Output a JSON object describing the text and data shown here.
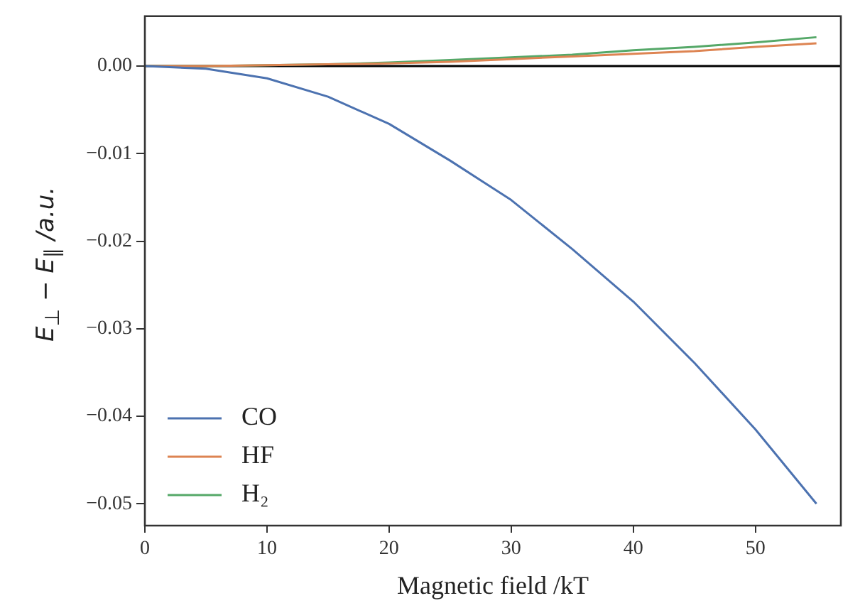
{
  "chart_data": {
    "type": "line",
    "xlabel": "Magnetic field /kT",
    "ylabel": "E$_{⊥}$ − E$_{∥}$ /a.u.",
    "x": [
      0,
      5,
      10,
      15,
      20,
      25,
      30,
      35,
      40,
      45,
      50,
      55
    ],
    "series": [
      {
        "name": "CO",
        "color": "#4c72b0",
        "values": [
          0,
          -0.0003,
          -0.0014,
          -0.0035,
          -0.0066,
          -0.0108,
          -0.0153,
          -0.0209,
          -0.0269,
          -0.0339,
          -0.0415,
          -0.05
        ]
      },
      {
        "name": "HF",
        "color": "#dd8452",
        "values": [
          0,
          0,
          0.0001,
          0.0002,
          0.0003,
          0.0005,
          0.0008,
          0.0011,
          0.0014,
          0.0017,
          0.0022,
          0.0026
        ]
      },
      {
        "name": "H₂",
        "color": "#55a868",
        "values": [
          0,
          0,
          0.0001,
          0.0002,
          0.0004,
          0.0007,
          0.001,
          0.0013,
          0.0018,
          0.0022,
          0.0027,
          0.0033
        ]
      }
    ],
    "xlim": [
      0,
      57
    ],
    "xticks": [
      0,
      10,
      20,
      30,
      40,
      50
    ],
    "ylim": [
      -0.0525,
      0.0057
    ],
    "yticks": [
      {
        "value": 0,
        "label": "0.00"
      },
      {
        "value": -0.01,
        "label": "−0.01"
      },
      {
        "value": -0.02,
        "label": "−0.02"
      },
      {
        "value": -0.03,
        "label": "−0.03"
      },
      {
        "value": -0.04,
        "label": "−0.04"
      },
      {
        "value": -0.05,
        "label": "−0.05"
      }
    ],
    "ref_lines": [
      {
        "axis": "y",
        "value": 0,
        "color": "#000000"
      }
    ],
    "grid": false,
    "legend": "bottom left",
    "marker": "none",
    "line_style": "solid"
  }
}
